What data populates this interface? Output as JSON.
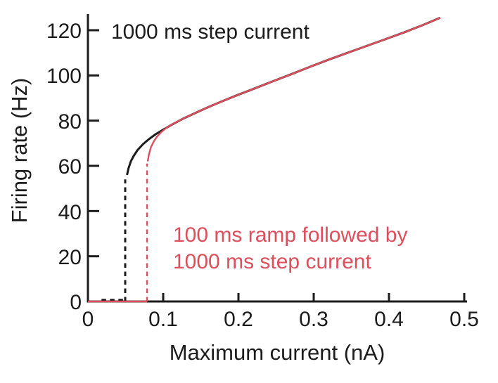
{
  "colors": {
    "ink_black": "#1c1c1c",
    "accent_red": "#dd4f5d",
    "background": "#ffffff"
  },
  "chart_data": {
    "type": "line",
    "title": "",
    "xlabel": "Maximum current (nA)",
    "ylabel": "Firing rate (Hz)",
    "xlim": [
      0,
      0.5
    ],
    "ylim": [
      0,
      128
    ],
    "x_ticks": [
      0,
      0.1,
      0.2,
      0.3,
      0.4,
      0.5
    ],
    "x_tick_labels": [
      "0",
      "0.1",
      "0.2",
      "0.3",
      "0.4",
      "0.5"
    ],
    "y_ticks": [
      0,
      20,
      40,
      60,
      80,
      100,
      120
    ],
    "y_tick_labels": [
      "0",
      "20",
      "40",
      "60",
      "80",
      "100",
      "120"
    ],
    "grid": false,
    "legend_position": "inline-annotations",
    "series": [
      {
        "id": "step",
        "label": "1000 ms step current",
        "color": "#1c1c1c",
        "segments": [
          {
            "style": "solid",
            "points": [
              [
                0,
                0
              ],
              [
                0.018,
                0
              ]
            ]
          },
          {
            "style": "dashed",
            "points": [
              [
                0.018,
                0.7
              ],
              [
                0.0495,
                0.7
              ]
            ]
          },
          {
            "style": "dashed",
            "points": [
              [
                0.0495,
                0
              ],
              [
                0.0495,
                54
              ]
            ]
          },
          {
            "style": "solid",
            "points": [
              [
                0.052,
                56
              ],
              [
                0.054,
                59
              ],
              [
                0.057,
                62
              ],
              [
                0.061,
                64.5
              ],
              [
                0.066,
                67
              ],
              [
                0.073,
                69.5
              ],
              [
                0.081,
                71.8
              ],
              [
                0.09,
                74
              ],
              [
                0.1,
                76
              ],
              [
                0.112,
                78.3
              ],
              [
                0.126,
                80.8
              ],
              [
                0.142,
                83.3
              ],
              [
                0.16,
                86
              ],
              [
                0.18,
                88.8
              ],
              [
                0.2,
                91.5
              ],
              [
                0.222,
                94.3
              ],
              [
                0.245,
                97.3
              ],
              [
                0.27,
                100.5
              ],
              [
                0.295,
                103.8
              ],
              [
                0.32,
                107
              ],
              [
                0.345,
                110
              ],
              [
                0.37,
                113
              ],
              [
                0.395,
                116
              ],
              [
                0.42,
                119
              ],
              [
                0.445,
                122.3
              ],
              [
                0.468,
                125.5
              ]
            ]
          }
        ]
      },
      {
        "id": "ramp",
        "label_lines": [
          "100 ms ramp followed by",
          "1000 ms step current"
        ],
        "color": "#dd4f5d",
        "segments": [
          {
            "style": "solid",
            "points": [
              [
                0,
                0
              ],
              [
                0.0785,
                0
              ]
            ]
          },
          {
            "style": "dashed",
            "points": [
              [
                0.0785,
                0
              ],
              [
                0.0785,
                61
              ]
            ]
          },
          {
            "style": "solid",
            "points": [
              [
                0.0795,
                62
              ],
              [
                0.081,
                65
              ],
              [
                0.0835,
                68
              ],
              [
                0.087,
                70.5
              ],
              [
                0.0915,
                72.8
              ],
              [
                0.097,
                74.8
              ],
              [
                0.104,
                76.8
              ],
              [
                0.113,
                78.6
              ],
              [
                0.126,
                80.8
              ],
              [
                0.142,
                83.3
              ],
              [
                0.16,
                86
              ],
              [
                0.18,
                88.8
              ],
              [
                0.2,
                91.5
              ],
              [
                0.222,
                94.3
              ],
              [
                0.245,
                97.3
              ],
              [
                0.27,
                100.5
              ],
              [
                0.295,
                103.8
              ],
              [
                0.32,
                107
              ],
              [
                0.345,
                110
              ],
              [
                0.37,
                113
              ],
              [
                0.395,
                116
              ],
              [
                0.42,
                119
              ],
              [
                0.445,
                122.3
              ],
              [
                0.468,
                125.5
              ]
            ]
          }
        ]
      }
    ]
  }
}
